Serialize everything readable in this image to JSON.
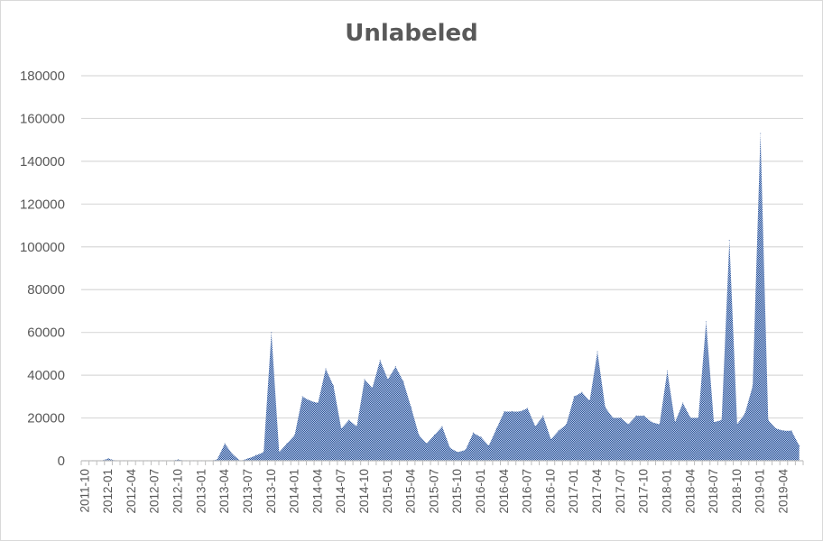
{
  "chart_data": {
    "type": "area",
    "title": "Unlabeled",
    "xlabel": "",
    "ylabel": "",
    "ylim": [
      0,
      180000
    ],
    "yticks": [
      "0",
      "20000",
      "40000",
      "60000",
      "80000",
      "100000",
      "120000",
      "140000",
      "160000",
      "180000"
    ],
    "grid": "horizontal",
    "legend": "none",
    "fill_color": "#4472c4",
    "x": [
      "2011-10",
      "2011-11",
      "2011-12",
      "2012-01",
      "2012-02",
      "2012-03",
      "2012-04",
      "2012-05",
      "2012-06",
      "2012-07",
      "2012-08",
      "2012-09",
      "2012-10",
      "2012-11",
      "2012-12",
      "2013-01",
      "2013-02",
      "2013-03",
      "2013-04",
      "2013-05",
      "2013-06",
      "2013-07",
      "2013-08",
      "2013-09",
      "2013-10",
      "2013-11",
      "2013-12",
      "2014-01",
      "2014-02",
      "2014-03",
      "2014-04",
      "2014-05",
      "2014-06",
      "2014-07",
      "2014-08",
      "2014-09",
      "2014-10",
      "2014-11",
      "2014-12",
      "2015-01",
      "2015-02",
      "2015-03",
      "2015-04",
      "2015-05",
      "2015-06",
      "2015-07",
      "2015-08",
      "2015-09",
      "2015-10",
      "2015-11",
      "2015-12",
      "2016-01",
      "2016-02",
      "2016-03",
      "2016-04",
      "2016-05",
      "2016-06",
      "2016-07",
      "2016-08",
      "2016-09",
      "2016-10",
      "2016-11",
      "2016-12",
      "2017-01",
      "2017-02",
      "2017-03",
      "2017-04",
      "2017-05",
      "2017-06",
      "2017-07",
      "2017-08",
      "2017-09",
      "2017-10",
      "2017-11",
      "2017-12",
      "2018-01",
      "2018-02",
      "2018-03",
      "2018-04",
      "2018-05",
      "2018-06",
      "2018-07",
      "2018-08",
      "2018-09",
      "2018-10",
      "2018-11",
      "2018-12",
      "2019-01",
      "2019-02",
      "2019-03",
      "2019-04",
      "2019-05",
      "2019-06"
    ],
    "xtick_labels": [
      "2011-10",
      "2012-01",
      "2012-04",
      "2012-07",
      "2012-10",
      "2013-01",
      "2013-04",
      "2013-07",
      "2013-10",
      "2014-01",
      "2014-04",
      "2014-07",
      "2014-10",
      "2015-01",
      "2015-04",
      "2015-07",
      "2015-10",
      "2016-01",
      "2016-04",
      "2016-07",
      "2016-10",
      "2017-01",
      "2017-04",
      "2017-07",
      "2017-10",
      "2018-01",
      "2018-04",
      "2018-07",
      "2018-10",
      "2019-01",
      "2019-04"
    ],
    "series": [
      {
        "values": [
          0,
          0,
          0,
          1000,
          0,
          0,
          0,
          0,
          0,
          0,
          0,
          0,
          500,
          0,
          0,
          0,
          0,
          500,
          8000,
          3000,
          0,
          1000,
          2500,
          4000,
          60000,
          4000,
          8000,
          12000,
          30000,
          28000,
          27000,
          43000,
          35000,
          15000,
          19000,
          16000,
          38000,
          34000,
          47000,
          38000,
          44000,
          37000,
          25000,
          12000,
          8000,
          12000,
          16000,
          6000,
          4000,
          5000,
          13000,
          11000,
          7000,
          15000,
          23000,
          23000,
          23000,
          24500,
          16000,
          21000,
          10000,
          14000,
          17000,
          30000,
          32000,
          28000,
          51000,
          25000,
          20000,
          20000,
          17000,
          21000,
          21000,
          18000,
          17000,
          42000,
          18000,
          27000,
          20000,
          20000,
          65000,
          18000,
          19000,
          103000,
          17000,
          22000,
          35000,
          153000,
          19000,
          15000,
          14000,
          14000,
          7000
        ]
      }
    ]
  }
}
